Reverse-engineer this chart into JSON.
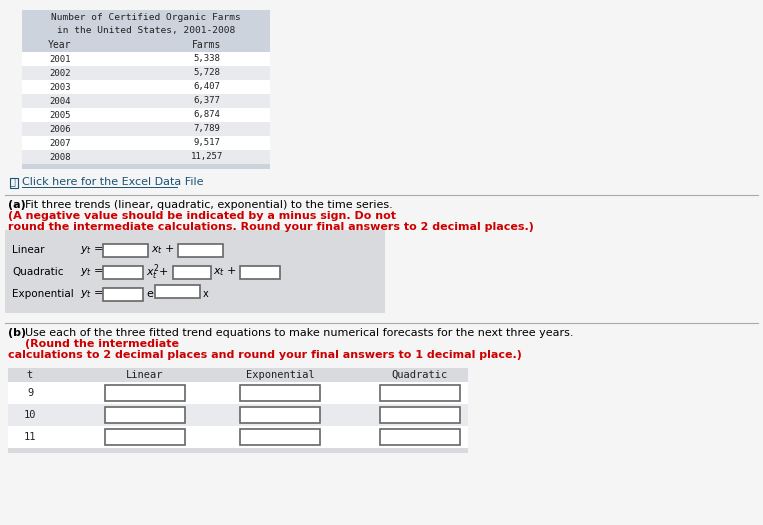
{
  "title_line1": "Number of Certified Organic Farms",
  "title_line2": "in the United States, 2001-2008",
  "table_headers": [
    "Year",
    "Farms"
  ],
  "table_years": [
    "2001",
    "2002",
    "2003",
    "2004",
    "2005",
    "2006",
    "2007",
    "2008"
  ],
  "table_farms": [
    "5,338",
    "5,728",
    "6,407",
    "6,377",
    "6,874",
    "7,789",
    "9,517",
    "11,257"
  ],
  "excel_link": "Click here for the Excel Data File",
  "part_a_normal": "Fit three trends (linear, quadratic, exponential) to the time series. ",
  "part_a_bold": "(A negative value should be indicated by a minus sign. Do not round the intermediate calculations. Round your final answers to 2 decimal places.)",
  "part_b_normal": "Use each of the three fitted trend equations to make numerical forecasts for the next three years. ",
  "part_b_bold": "(Round the intermediate calculations to 2 decimal places and round your final answers to 1 decimal place.)",
  "trend_labels": [
    "Linear",
    "Quadratic",
    "Exponential"
  ],
  "forecast_headers": [
    "t",
    "Linear",
    "Exponential",
    "Quadratic"
  ],
  "forecast_rows": [
    "9",
    "10",
    "11"
  ],
  "bg_color": "#f5f5f5",
  "table_title_bg": "#cdd3dc",
  "table_header_bg": "#cdd3dc",
  "table_row_light": "#ffffff",
  "table_row_dark": "#e8eaed",
  "table_footer_bg": "#cdd3dc",
  "trend_panel_bg": "#d8dadd",
  "forecast_header_bg": "#d8dadd",
  "forecast_footer_bg": "#d8dadd",
  "input_box_color": "#ffffff",
  "text_dark": "#222222",
  "text_blue": "#1a5276",
  "text_red": "#cc0000",
  "sep_color": "#aaaaaa"
}
